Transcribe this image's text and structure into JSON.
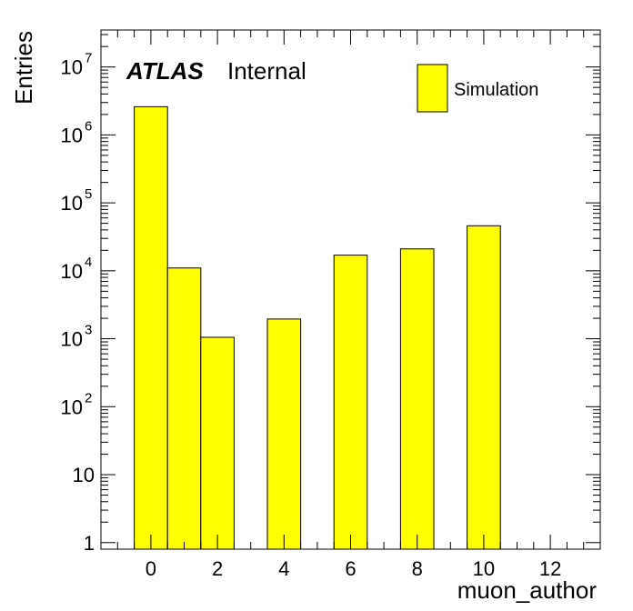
{
  "chart_data": {
    "type": "bar",
    "title": "",
    "xlabel": "muon_author",
    "ylabel": "Entries",
    "xlim": [
      -1.5,
      13.5
    ],
    "ylim": [
      0.8,
      35000000
    ],
    "yscale": "log",
    "bin_width": 1,
    "bins": [
      {
        "center": 0,
        "value": 2600000
      },
      {
        "center": 1,
        "value": 11000
      },
      {
        "center": 2,
        "value": 1050
      },
      {
        "center": 4,
        "value": 1950
      },
      {
        "center": 6,
        "value": 17000
      },
      {
        "center": 8,
        "value": 21000
      },
      {
        "center": 10,
        "value": 46000
      }
    ],
    "x_ticks": [
      "0",
      "2",
      "4",
      "6",
      "8",
      "10",
      "12"
    ],
    "y_ticks": [
      {
        "value": 1,
        "base": "1",
        "exp": ""
      },
      {
        "value": 10,
        "base": "10",
        "exp": ""
      },
      {
        "value": 100,
        "base": "10",
        "exp": "2"
      },
      {
        "value": 1000,
        "base": "10",
        "exp": "3"
      },
      {
        "value": 10000,
        "base": "10",
        "exp": "4"
      },
      {
        "value": 100000,
        "base": "10",
        "exp": "5"
      },
      {
        "value": 1000000,
        "base": "10",
        "exp": "6"
      },
      {
        "value": 10000000,
        "base": "10",
        "exp": "7"
      }
    ],
    "fill_color": "#ffff00",
    "line_color": "#000000",
    "legend": {
      "entries": [
        "Simulation"
      ],
      "placement": "top-right"
    },
    "annotation": {
      "experiment": "ATLAS",
      "status": "Internal"
    },
    "grid": false
  }
}
